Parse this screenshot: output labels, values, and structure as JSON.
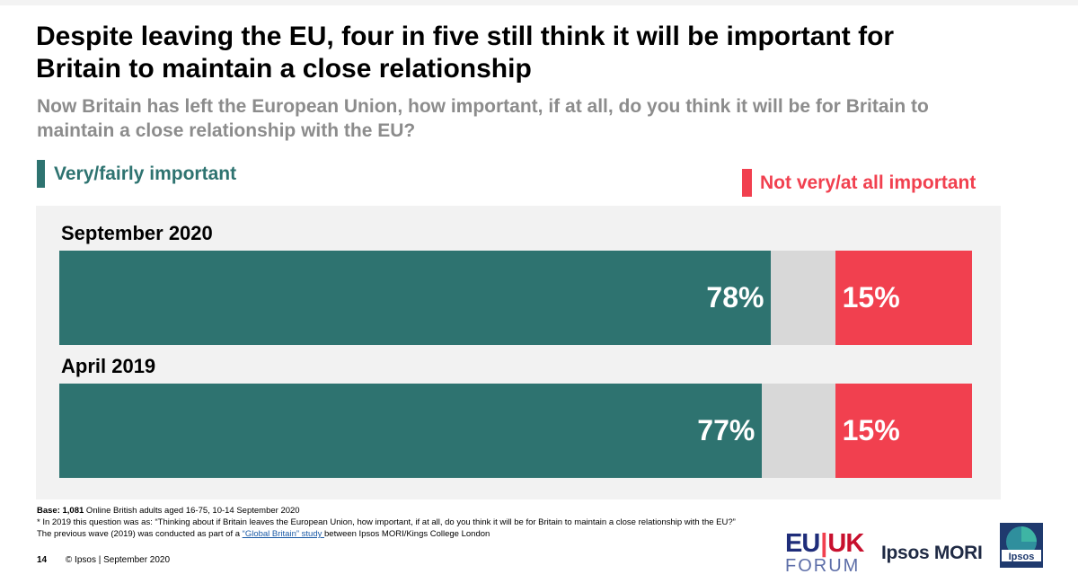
{
  "title": "Despite leaving the EU, four in five still think it will be important for Britain to maintain a close relationship",
  "subtitle": "Now Britain has left the European Union, how important, if at all, do you think it will be for Britain to maintain a close relationship with the EU?",
  "colors": {
    "important": "#2e7370",
    "not_important": "#f1404f",
    "neither": "#d8d8d8",
    "panel": "#f2f2f2"
  },
  "chart_data": {
    "type": "bar",
    "orientation": "horizontal-stacked",
    "categories": [
      "September 2020",
      "April 2019"
    ],
    "series": [
      {
        "name": "Very/fairly important",
        "values": [
          78,
          77
        ],
        "labels": [
          "78%",
          "77%"
        ]
      },
      {
        "name": "Not very/at all important",
        "values": [
          15,
          15
        ],
        "labels": [
          "15%",
          "15%"
        ]
      }
    ],
    "xlim": [
      0,
      100
    ]
  },
  "footnotes": {
    "base_label": "Base: 1,081",
    "base_text": " Online British adults aged 16-75, 10-14 September 2020",
    "note1": "* In 2019 this question was as: “Thinking about if Britain leaves the European Union, how important, if at all, do you think it will be for Britain to maintain a close relationship with the EU?”",
    "note2_prefix": "The previous wave (2019) was conducted as part of a ",
    "note2_link": "“Global Britain” study ",
    "note2_suffix": "between Ipsos MORI/Kings College London"
  },
  "footer": {
    "page_number": "14",
    "copyright": "© Ipsos | September 2020"
  },
  "logos": {
    "euuk_eu": "EU",
    "euuk_separator": "|",
    "euuk_uk": "UK",
    "euuk_forum": "FORUM",
    "ipsos_mori": "Ipsos MORI",
    "ipsos_badge": "Ipsos"
  }
}
